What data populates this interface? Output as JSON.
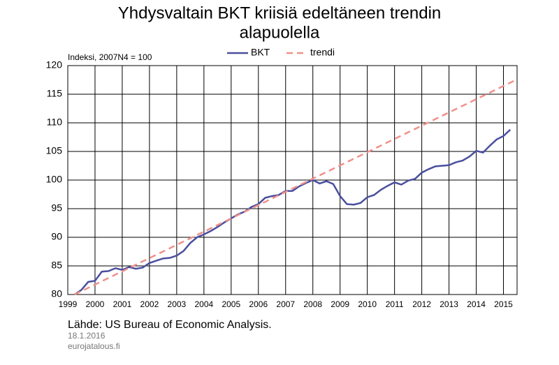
{
  "chart_data": {
    "type": "line",
    "title": "Yhdysvaltain BKT kriisiä edeltäneen trendin",
    "title_line2": "alapuolella",
    "y_label": "Indeksi, 2007N4 = 100",
    "source": "Lähde: US Bureau of Economic Analysis.",
    "date": "18.1.2016",
    "site": "eurojatalous.fi",
    "xlim": [
      1999,
      2015.5
    ],
    "xticks": [
      1999,
      2000,
      2001,
      2002,
      2003,
      2004,
      2005,
      2006,
      2007,
      2008,
      2009,
      2010,
      2011,
      2012,
      2013,
      2014,
      2015
    ],
    "ylim": [
      80,
      120
    ],
    "yticks": [
      80,
      85,
      90,
      95,
      100,
      105,
      110,
      115,
      120
    ],
    "grid": true,
    "series": [
      {
        "name": "BKT",
        "color": "#4a4f9e",
        "dashed": false,
        "x": [
          1999.25,
          1999.5,
          1999.75,
          2000,
          2000.25,
          2000.5,
          2000.75,
          2001,
          2001.25,
          2001.5,
          2001.75,
          2002,
          2002.25,
          2002.5,
          2002.75,
          2003,
          2003.25,
          2003.5,
          2003.75,
          2004,
          2004.25,
          2004.5,
          2004.75,
          2005,
          2005.25,
          2005.5,
          2005.75,
          2006,
          2006.25,
          2006.5,
          2006.75,
          2007,
          2007.25,
          2007.5,
          2007.75,
          2008,
          2008.25,
          2008.5,
          2008.75,
          2009,
          2009.25,
          2009.5,
          2009.75,
          2010,
          2010.25,
          2010.5,
          2010.75,
          2011,
          2011.25,
          2011.5,
          2011.75,
          2012,
          2012.25,
          2012.5,
          2012.75,
          2013,
          2013.25,
          2013.5,
          2013.75,
          2014,
          2014.25,
          2014.5,
          2014.75,
          2015,
          2015.25
        ],
        "values": [
          80.0,
          80.8,
          82.2,
          82.4,
          84.0,
          84.1,
          84.6,
          84.3,
          84.8,
          84.5,
          84.7,
          85.5,
          85.9,
          86.3,
          86.4,
          86.8,
          87.6,
          89.0,
          90.0,
          90.5,
          91.1,
          91.8,
          92.6,
          93.3,
          94.0,
          94.5,
          95.3,
          95.8,
          96.9,
          97.2,
          97.4,
          98.1,
          98.1,
          98.9,
          99.5,
          100.0,
          99.4,
          99.8,
          99.3,
          97.2,
          95.8,
          95.7,
          96.0,
          97.0,
          97.4,
          98.3,
          99.0,
          99.6,
          99.2,
          99.9,
          100.2,
          101.3,
          101.9,
          102.4,
          102.5,
          102.6,
          103.1,
          103.4,
          104.1,
          105.1,
          104.8,
          106.0,
          107.1,
          107.7,
          108.8
        ]
      },
      {
        "name": "trendi",
        "color": "#f0908a",
        "dashed": true,
        "x": [
          1999.25,
          2015.5
        ],
        "values": [
          80.0,
          117.6
        ]
      }
    ]
  }
}
